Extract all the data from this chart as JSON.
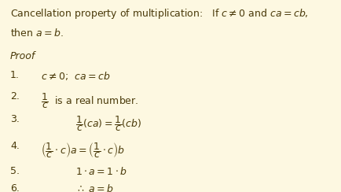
{
  "background_color": "#fdf8e1",
  "text_color": "#4a3a0a",
  "figsize": [
    4.35,
    2.44
  ],
  "dpi": 100
}
